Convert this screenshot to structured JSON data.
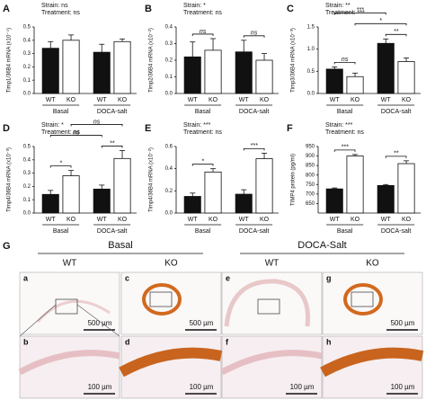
{
  "chart_data": [
    {
      "type": "bar",
      "panel": "A",
      "y_label": "Timp1/36B4 mRNA (x10⁻⁴)",
      "stats": [
        "Strain: ns",
        "Treatment: ns"
      ],
      "categories": [
        "WT",
        "KO",
        "WT",
        "KO"
      ],
      "groups": [
        "Basal",
        "DOCA-salt"
      ],
      "values": [
        0.34,
        0.4,
        0.31,
        0.39
      ],
      "errors": [
        0.05,
        0.04,
        0.06,
        0.02
      ],
      "colors": [
        "#111111",
        "#ffffff",
        "#111111",
        "#ffffff"
      ],
      "ylim": [
        0,
        0.5
      ],
      "yticks": [
        {
          "value": 0,
          "label": "0.0"
        },
        0.1,
        0.2,
        0.3,
        0.4,
        0.5
      ],
      "annotations": []
    },
    {
      "type": "bar",
      "panel": "B",
      "y_label": "Timp2/36B4 mRNA (x10⁻²)",
      "stats": [
        "Strain: *",
        "Treatment: ns"
      ],
      "categories": [
        "WT",
        "KO",
        "WT",
        "KO"
      ],
      "groups": [
        "Basal",
        "DOCA-salt"
      ],
      "values": [
        0.22,
        0.26,
        0.25,
        0.2
      ],
      "errors": [
        0.09,
        0.07,
        0.07,
        0.04
      ],
      "colors": [
        "#111111",
        "#ffffff",
        "#111111",
        "#ffffff"
      ],
      "ylim": [
        0,
        0.4
      ],
      "yticks": [
        {
          "value": 0,
          "label": "0.0"
        },
        0.1,
        0.2,
        0.3,
        0.4
      ],
      "annotations": [
        {
          "label": "ns",
          "from": 0,
          "to": 1
        },
        {
          "label": "ns",
          "from": 2,
          "to": 3
        }
      ]
    },
    {
      "type": "bar",
      "panel": "C",
      "y_label": "Timp3/36B4 mRNA (x10⁻³)",
      "stats": [
        "Strain: **",
        "Treatment: ***"
      ],
      "categories": [
        "WT",
        "KO",
        "WT",
        "KO"
      ],
      "groups": [
        "Basal",
        "DOCA-salt"
      ],
      "values": [
        0.55,
        0.38,
        1.13,
        0.72
      ],
      "errors": [
        0.05,
        0.08,
        0.1,
        0.08
      ],
      "colors": [
        "#111111",
        "#ffffff",
        "#111111",
        "#ffffff"
      ],
      "ylim": [
        0,
        1.5
      ],
      "yticks": [
        {
          "value": 0,
          "label": "0.0"
        },
        0.5,
        {
          "value": 1,
          "label": "1.0"
        },
        1.5
      ],
      "annotations": [
        {
          "label": "ns",
          "from": 0,
          "to": 1
        },
        {
          "label": "**",
          "from": 2,
          "to": 3
        },
        {
          "label": "*",
          "from": 1,
          "to": 3
        },
        {
          "label": "***",
          "from": 0,
          "to": 2
        }
      ]
    },
    {
      "type": "bar",
      "panel": "D",
      "y_label": "Timp4/36B4 mRNA (x10⁻³)",
      "stats": [
        "Strain: *",
        "Treatment: ns"
      ],
      "categories": [
        "WT",
        "KO",
        "WT",
        "KO"
      ],
      "groups": [
        "Basal",
        "DOCA-salt"
      ],
      "values": [
        0.14,
        0.28,
        0.18,
        0.41
      ],
      "errors": [
        0.03,
        0.04,
        0.03,
        0.06
      ],
      "colors": [
        "#111111",
        "#ffffff",
        "#111111",
        "#ffffff"
      ],
      "ylim": [
        0,
        0.5
      ],
      "yticks": [
        {
          "value": 0,
          "label": "0.0"
        },
        0.1,
        0.2,
        0.3,
        0.4,
        0.5
      ],
      "annotations": [
        {
          "label": "*",
          "from": 0,
          "to": 1
        },
        {
          "label": "**",
          "from": 2,
          "to": 3
        },
        {
          "label": "ns",
          "from": 0,
          "to": 2
        },
        {
          "label": "ns",
          "from": 1,
          "to": 3
        }
      ]
    },
    {
      "type": "bar",
      "panel": "E",
      "y_label": "Timp4/36B4 mRNA (x10⁻²)",
      "stats": [
        "Strain: ***",
        "Treatment: ns"
      ],
      "categories": [
        "WT",
        "KO",
        "WT",
        "KO"
      ],
      "groups": [
        "Basal",
        "DOCA-salt"
      ],
      "values": [
        0.15,
        0.37,
        0.17,
        0.49
      ],
      "errors": [
        0.03,
        0.03,
        0.04,
        0.05
      ],
      "colors": [
        "#111111",
        "#ffffff",
        "#111111",
        "#ffffff"
      ],
      "ylim": [
        0,
        0.6
      ],
      "yticks": [
        {
          "value": 0,
          "label": "0.0"
        },
        0.2,
        0.4,
        0.6
      ],
      "annotations": [
        {
          "label": "*",
          "from": 0,
          "to": 1
        },
        {
          "label": "***",
          "from": 2,
          "to": 3
        }
      ]
    },
    {
      "type": "bar",
      "panel": "F",
      "y_label": "TIMP4 protein (pg/ml)",
      "stats": [
        "Strain: ***",
        "Treatment: ns"
      ],
      "categories": [
        "WT",
        "KO",
        "WT",
        "KO"
      ],
      "groups": [
        "Basal",
        "DOCA-salt"
      ],
      "values": [
        727,
        900,
        745,
        860
      ],
      "errors": [
        5,
        8,
        5,
        15
      ],
      "colors": [
        "#111111",
        "#ffffff",
        "#111111",
        "#ffffff"
      ],
      "ylim": [
        600,
        950
      ],
      "yticks": [
        650,
        700,
        750,
        800,
        850,
        900,
        950
      ],
      "annotations": [
        {
          "label": "***",
          "from": 0,
          "to": 1
        },
        {
          "label": "**",
          "from": 2,
          "to": 3
        }
      ]
    }
  ],
  "panel_g": {
    "label": "G",
    "groups": [
      {
        "label": "Basal",
        "columns": [
          "WT",
          "KO"
        ]
      },
      {
        "label": "DOCA-Salt",
        "columns": [
          "WT",
          "KO"
        ]
      }
    ],
    "panels": [
      {
        "letter": "a",
        "scale": "500 µm"
      },
      {
        "letter": "b",
        "scale": "100 µm"
      },
      {
        "letter": "c",
        "scale": "500 µm"
      },
      {
        "letter": "d",
        "scale": "100 µm"
      },
      {
        "letter": "e"
      },
      {
        "letter": "f",
        "scale": "100 µm"
      },
      {
        "letter": "g",
        "scale": "500 µm"
      },
      {
        "letter": "h",
        "scale": "100 µm"
      }
    ]
  }
}
